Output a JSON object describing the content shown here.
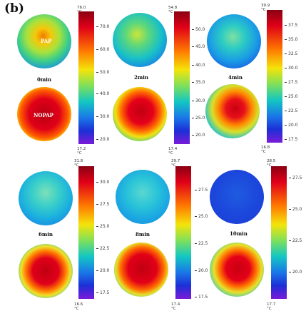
{
  "panel_label": "(b)",
  "cells": [
    {
      "time": "0min",
      "top_label": "PAP",
      "bottom_label": "NOPAP",
      "max": "76.0 °C",
      "min": "17.2 °C",
      "ticks": [
        "70.0",
        "60.0",
        "50.0",
        "40.0",
        "30.0",
        "20.0"
      ]
    },
    {
      "time": "2min",
      "top_label": "",
      "bottom_label": "",
      "max": "54.8 °C",
      "min": "17.4 °C",
      "ticks": [
        "50.0",
        "45.0",
        "40.0",
        "35.0",
        "30.0",
        "25.0",
        "20.0"
      ]
    },
    {
      "time": "4min",
      "top_label": "",
      "bottom_label": "",
      "max": "39.9 °C",
      "min": "16.8 °C",
      "ticks": [
        "37.5",
        "35.0",
        "32.5",
        "30.0",
        "27.5",
        "25.0",
        "22.5",
        "20.0",
        "17.5"
      ]
    },
    {
      "time": "6min",
      "top_label": "",
      "bottom_label": "",
      "max": "31.8 °C",
      "min": "16.6 °C",
      "ticks": [
        "30.0",
        "27.5",
        "25.0",
        "22.5",
        "20.0",
        "17.5"
      ]
    },
    {
      "time": "8min",
      "top_label": "",
      "bottom_label": "",
      "max": "29.7 °C",
      "min": "17.4 °C",
      "ticks": [
        "27.5",
        "25.0",
        "22.5",
        "20.0",
        "17.5"
      ]
    },
    {
      "time": "10min",
      "top_label": "",
      "bottom_label": "",
      "max": "28.5 °C",
      "min": "17.7 °C",
      "ticks": [
        "27.5",
        "25.0",
        "22.5",
        "20.0"
      ]
    }
  ]
}
